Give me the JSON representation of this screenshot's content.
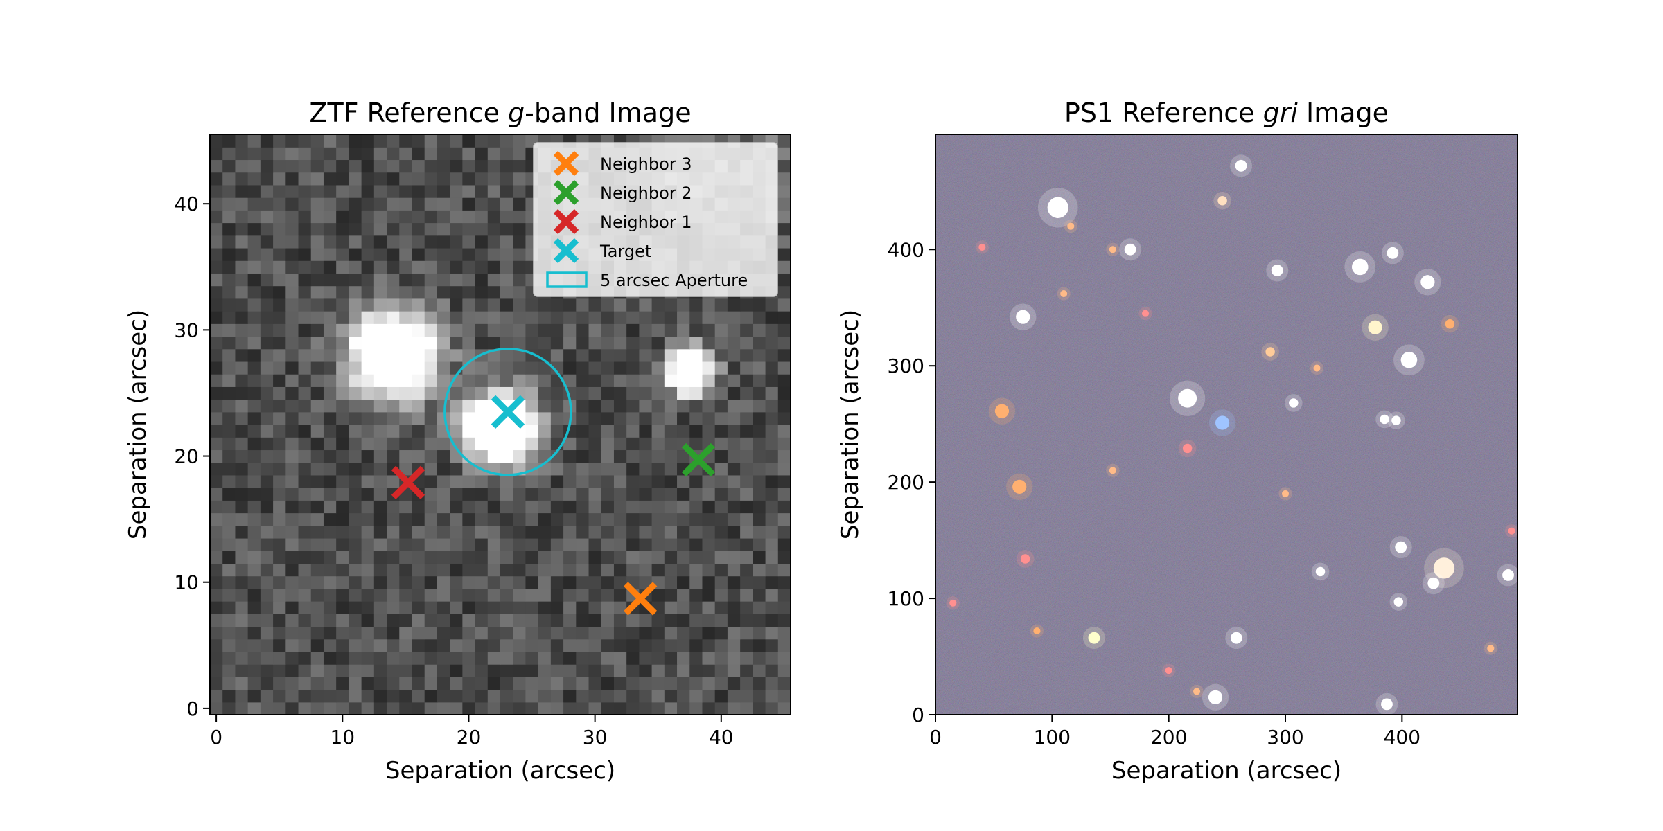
{
  "colors": {
    "target": "#17becf",
    "neighbor_1": "#d62728",
    "neighbor_2": "#2ca02c",
    "neighbor_3": "#ff7f0e",
    "aperture": "#17becf"
  },
  "chart_data": [
    {
      "type": "scatter",
      "panel": "left",
      "title": {
        "prefix": "ZTF Reference ",
        "italic": "g",
        "suffix": "-band Image"
      },
      "xlabel": "Separation (arcsec)",
      "ylabel": "Separation (arcsec)",
      "xlim": [
        -0.5,
        45.5
      ],
      "ylim": [
        -0.5,
        45.5
      ],
      "xticks": [
        0,
        10,
        20,
        30,
        40
      ],
      "yticks": [
        0,
        10,
        20,
        30,
        40
      ],
      "background": "grayscale ZTF g-band cutout",
      "legend_position": "upper-right",
      "series": [
        {
          "name": "Neighbor 3",
          "marker": "x",
          "color": "#ff7f0e",
          "x": [
            33.6
          ],
          "y": [
            8.7
          ]
        },
        {
          "name": "Neighbor 2",
          "marker": "x",
          "color": "#2ca02c",
          "x": [
            38.2
          ],
          "y": [
            19.7
          ]
        },
        {
          "name": "Neighbor 1",
          "marker": "x",
          "color": "#d62728",
          "x": [
            15.2
          ],
          "y": [
            17.9
          ]
        },
        {
          "name": "Target",
          "marker": "x",
          "color": "#17becf",
          "x": [
            23.1
          ],
          "y": [
            23.5
          ]
        }
      ],
      "aperture": {
        "name": "5 arcsec Aperture",
        "center": [
          23.1,
          23.5
        ],
        "radius": 5,
        "color": "#17becf"
      },
      "sources": [
        {
          "x": 14.0,
          "y": 28.0,
          "r": 3.6,
          "peak": 1.0
        },
        {
          "x": 22.5,
          "y": 22.3,
          "r": 3.0,
          "peak": 1.0
        },
        {
          "x": 37.5,
          "y": 26.8,
          "r": 2.0,
          "peak": 0.95
        }
      ]
    },
    {
      "type": "scatter",
      "panel": "right",
      "title": {
        "prefix": "PS1 Reference ",
        "italic": "gri",
        "suffix": " Image"
      },
      "xlabel": "Separation (arcsec)",
      "ylabel": "Separation (arcsec)",
      "xlim": [
        0,
        499
      ],
      "ylim": [
        0,
        499
      ],
      "xticks": [
        0,
        100,
        200,
        300,
        400
      ],
      "yticks": [
        0,
        100,
        200,
        300,
        400
      ],
      "background": "PS1 gri color composite",
      "stars": [
        {
          "x": 105,
          "y": 436,
          "r": 9,
          "color": "#ffffff"
        },
        {
          "x": 262,
          "y": 472,
          "r": 5,
          "color": "#ffffff"
        },
        {
          "x": 75,
          "y": 342,
          "r": 6,
          "color": "#ffffff"
        },
        {
          "x": 167,
          "y": 400,
          "r": 5,
          "color": "#ffffff"
        },
        {
          "x": 152,
          "y": 400,
          "r": 3,
          "color": "#ffbb88"
        },
        {
          "x": 293,
          "y": 382,
          "r": 5,
          "color": "#ffffff"
        },
        {
          "x": 364,
          "y": 385,
          "r": 7,
          "color": "#ffffff"
        },
        {
          "x": 392,
          "y": 397,
          "r": 5,
          "color": "#ffffff"
        },
        {
          "x": 422,
          "y": 372,
          "r": 6,
          "color": "#ffffff"
        },
        {
          "x": 377,
          "y": 333,
          "r": 6,
          "color": "#fff5cc"
        },
        {
          "x": 406,
          "y": 305,
          "r": 7,
          "color": "#ffffff"
        },
        {
          "x": 216,
          "y": 272,
          "r": 8,
          "color": "#ffffff"
        },
        {
          "x": 246,
          "y": 251,
          "r": 6,
          "color": "#9fc4ff"
        },
        {
          "x": 307,
          "y": 268,
          "r": 4,
          "color": "#ffffff"
        },
        {
          "x": 385,
          "y": 254,
          "r": 4,
          "color": "#ffffff"
        },
        {
          "x": 395,
          "y": 253,
          "r": 4,
          "color": "#ffffff"
        },
        {
          "x": 57,
          "y": 261,
          "r": 6,
          "color": "#ffb070"
        },
        {
          "x": 72,
          "y": 196,
          "r": 6,
          "color": "#ffb070"
        },
        {
          "x": 287,
          "y": 312,
          "r": 4,
          "color": "#ffcc99"
        },
        {
          "x": 327,
          "y": 298,
          "r": 3,
          "color": "#ffbb88"
        },
        {
          "x": 216,
          "y": 229,
          "r": 4,
          "color": "#ff9090"
        },
        {
          "x": 246,
          "y": 442,
          "r": 4,
          "color": "#ffe0c0"
        },
        {
          "x": 399,
          "y": 144,
          "r": 5,
          "color": "#ffffff"
        },
        {
          "x": 436,
          "y": 126,
          "r": 9,
          "color": "#fff0dc"
        },
        {
          "x": 427,
          "y": 113,
          "r": 5,
          "color": "#ffffff"
        },
        {
          "x": 491,
          "y": 120,
          "r": 5,
          "color": "#ffffff"
        },
        {
          "x": 330,
          "y": 123,
          "r": 4,
          "color": "#ffffff"
        },
        {
          "x": 397,
          "y": 97,
          "r": 4,
          "color": "#ffffff"
        },
        {
          "x": 136,
          "y": 66,
          "r": 5,
          "color": "#ffffcc"
        },
        {
          "x": 258,
          "y": 66,
          "r": 5,
          "color": "#ffffff"
        },
        {
          "x": 240,
          "y": 15,
          "r": 6,
          "color": "#ffffff"
        },
        {
          "x": 387,
          "y": 9,
          "r": 5,
          "color": "#ffffff"
        },
        {
          "x": 77,
          "y": 134,
          "r": 4,
          "color": "#ff9090"
        },
        {
          "x": 87,
          "y": 72,
          "r": 3,
          "color": "#ffb070"
        },
        {
          "x": 441,
          "y": 336,
          "r": 4,
          "color": "#ffb070"
        },
        {
          "x": 40,
          "y": 402,
          "r": 3,
          "color": "#ff9090"
        },
        {
          "x": 224,
          "y": 20,
          "r": 3,
          "color": "#ffbb88"
        },
        {
          "x": 200,
          "y": 38,
          "r": 3,
          "color": "#ff9090"
        },
        {
          "x": 15,
          "y": 96,
          "r": 3,
          "color": "#ff9090"
        },
        {
          "x": 116,
          "y": 420,
          "r": 3,
          "color": "#ffbb88"
        },
        {
          "x": 494,
          "y": 158,
          "r": 3,
          "color": "#ff9090"
        },
        {
          "x": 476,
          "y": 57,
          "r": 3,
          "color": "#ffbb88"
        },
        {
          "x": 110,
          "y": 362,
          "r": 3,
          "color": "#ffbb88"
        },
        {
          "x": 180,
          "y": 345,
          "r": 3,
          "color": "#ff9090"
        },
        {
          "x": 152,
          "y": 210,
          "r": 3,
          "color": "#ffbb88"
        },
        {
          "x": 300,
          "y": 190,
          "r": 3,
          "color": "#ffbb88"
        }
      ]
    }
  ]
}
